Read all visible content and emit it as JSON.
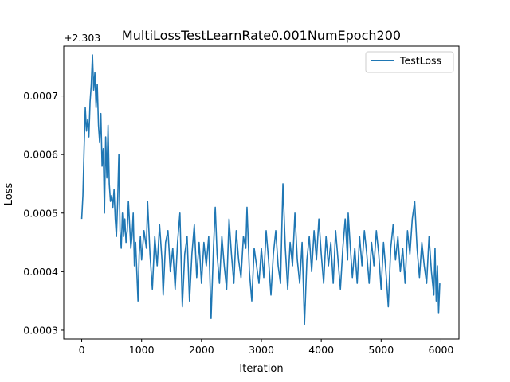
{
  "chart_data": {
    "type": "line",
    "title": "MultiLossTestLearnRate0.001NumEpoch200",
    "xlabel": "Iteration",
    "ylabel": "Loss",
    "y_offset_label": "+2.303",
    "y_offset": 2.303,
    "xlim": [
      -300,
      6300
    ],
    "ylim": [
      0.000285,
      0.000785
    ],
    "xticks": [
      0,
      1000,
      2000,
      3000,
      4000,
      5000,
      6000
    ],
    "xtick_labels": [
      "0",
      "1000",
      "2000",
      "3000",
      "4000",
      "5000",
      "6000"
    ],
    "yticks": [
      0.0003,
      0.0004,
      0.0005,
      0.0006,
      0.0007
    ],
    "ytick_labels": [
      "0.0003",
      "0.0004",
      "0.0005",
      "0.0006",
      "0.0007"
    ],
    "grid": false,
    "legend": {
      "position": "top-right",
      "entries": [
        "TestLoss"
      ]
    },
    "series": [
      {
        "name": "TestLoss",
        "color": "#1f77b4",
        "points": [
          [
            0,
            0.00049
          ],
          [
            20,
            0.00053
          ],
          [
            40,
            0.00061
          ],
          [
            60,
            0.00068
          ],
          [
            80,
            0.00064
          ],
          [
            100,
            0.00066
          ],
          [
            120,
            0.00063
          ],
          [
            140,
            0.00069
          ],
          [
            160,
            0.00072
          ],
          [
            180,
            0.00077
          ],
          [
            200,
            0.00071
          ],
          [
            220,
            0.00074
          ],
          [
            240,
            0.00068
          ],
          [
            260,
            0.00072
          ],
          [
            280,
            0.00065
          ],
          [
            300,
            0.00062
          ],
          [
            320,
            0.00067
          ],
          [
            340,
            0.00058
          ],
          [
            360,
            0.00061
          ],
          [
            380,
            0.0005
          ],
          [
            400,
            0.00063
          ],
          [
            420,
            0.00056
          ],
          [
            440,
            0.00065
          ],
          [
            460,
            0.00055
          ],
          [
            480,
            0.00052
          ],
          [
            500,
            0.00053
          ],
          [
            520,
            0.00051
          ],
          [
            540,
            0.00054
          ],
          [
            560,
            0.00049
          ],
          [
            580,
            0.00046
          ],
          [
            600,
            0.00052
          ],
          [
            620,
            0.0006
          ],
          [
            640,
            0.00047
          ],
          [
            660,
            0.00044
          ],
          [
            680,
            0.0005
          ],
          [
            700,
            0.00046
          ],
          [
            720,
            0.00049
          ],
          [
            740,
            0.00045
          ],
          [
            760,
            0.00047
          ],
          [
            780,
            0.00052
          ],
          [
            800,
            0.00048
          ],
          [
            820,
            0.00044
          ],
          [
            840,
            0.00046
          ],
          [
            860,
            0.0005
          ],
          [
            880,
            0.00041
          ],
          [
            900,
            0.00045
          ],
          [
            920,
            0.0004
          ],
          [
            940,
            0.00035
          ],
          [
            960,
            0.00043
          ],
          [
            980,
            0.00046
          ],
          [
            1000,
            0.00042
          ],
          [
            1040,
            0.00047
          ],
          [
            1080,
            0.00044
          ],
          [
            1100,
            0.00052
          ],
          [
            1140,
            0.00043
          ],
          [
            1180,
            0.00037
          ],
          [
            1220,
            0.00046
          ],
          [
            1260,
            0.00041
          ],
          [
            1300,
            0.00048
          ],
          [
            1340,
            0.00042
          ],
          [
            1360,
            0.00036
          ],
          [
            1400,
            0.00045
          ],
          [
            1440,
            0.00047
          ],
          [
            1480,
            0.0004
          ],
          [
            1520,
            0.00044
          ],
          [
            1560,
            0.00037
          ],
          [
            1600,
            0.00045
          ],
          [
            1640,
            0.0005
          ],
          [
            1680,
            0.00034
          ],
          [
            1720,
            0.00043
          ],
          [
            1760,
            0.00046
          ],
          [
            1800,
            0.00035
          ],
          [
            1840,
            0.00043
          ],
          [
            1880,
            0.00048
          ],
          [
            1920,
            0.00039
          ],
          [
            1960,
            0.00045
          ],
          [
            2000,
            0.00038
          ],
          [
            2040,
            0.00045
          ],
          [
            2080,
            0.00041
          ],
          [
            2120,
            0.00046
          ],
          [
            2160,
            0.00032
          ],
          [
            2200,
            0.00044
          ],
          [
            2230,
            0.00051
          ],
          [
            2260,
            0.00043
          ],
          [
            2300,
            0.00038
          ],
          [
            2340,
            0.00046
          ],
          [
            2380,
            0.00041
          ],
          [
            2420,
            0.00037
          ],
          [
            2460,
            0.00049
          ],
          [
            2500,
            0.00043
          ],
          [
            2540,
            0.00038
          ],
          [
            2580,
            0.00047
          ],
          [
            2620,
            0.00042
          ],
          [
            2660,
            0.00039
          ],
          [
            2700,
            0.00046
          ],
          [
            2740,
            0.00044
          ],
          [
            2760,
            0.00051
          ],
          [
            2800,
            0.0004
          ],
          [
            2840,
            0.00035
          ],
          [
            2880,
            0.00044
          ],
          [
            2920,
            0.00041
          ],
          [
            2960,
            0.00038
          ],
          [
            3000,
            0.00044
          ],
          [
            3040,
            0.00039
          ],
          [
            3080,
            0.00047
          ],
          [
            3120,
            0.00042
          ],
          [
            3160,
            0.00036
          ],
          [
            3200,
            0.00043
          ],
          [
            3240,
            0.00047
          ],
          [
            3280,
            0.00041
          ],
          [
            3320,
            0.00038
          ],
          [
            3360,
            0.00055
          ],
          [
            3400,
            0.00044
          ],
          [
            3440,
            0.00037
          ],
          [
            3480,
            0.00045
          ],
          [
            3520,
            0.00041
          ],
          [
            3560,
            0.0005
          ],
          [
            3600,
            0.00042
          ],
          [
            3640,
            0.00038
          ],
          [
            3680,
            0.00045
          ],
          [
            3720,
            0.00031
          ],
          [
            3760,
            0.00042
          ],
          [
            3800,
            0.00046
          ],
          [
            3840,
            0.0004
          ],
          [
            3880,
            0.00047
          ],
          [
            3920,
            0.00042
          ],
          [
            3960,
            0.00049
          ],
          [
            4000,
            0.00043
          ],
          [
            4040,
            0.00038
          ],
          [
            4080,
            0.00046
          ],
          [
            4120,
            0.00041
          ],
          [
            4160,
            0.00045
          ],
          [
            4200,
            0.00038
          ],
          [
            4240,
            0.00047
          ],
          [
            4280,
            0.00042
          ],
          [
            4320,
            0.00037
          ],
          [
            4360,
            0.00044
          ],
          [
            4400,
            0.00049
          ],
          [
            4440,
            0.00042
          ],
          [
            4450,
            0.0005
          ],
          [
            4480,
            0.00045
          ],
          [
            4520,
            0.00039
          ],
          [
            4560,
            0.00044
          ],
          [
            4600,
            0.00038
          ],
          [
            4640,
            0.00046
          ],
          [
            4680,
            0.00041
          ],
          [
            4720,
            0.00047
          ],
          [
            4760,
            0.00043
          ],
          [
            4800,
            0.00038
          ],
          [
            4840,
            0.00045
          ],
          [
            4880,
            0.00041
          ],
          [
            4920,
            0.00047
          ],
          [
            4960,
            0.00043
          ],
          [
            5000,
            0.00037
          ],
          [
            5040,
            0.00045
          ],
          [
            5080,
            0.0004
          ],
          [
            5120,
            0.00034
          ],
          [
            5160,
            0.00044
          ],
          [
            5200,
            0.00048
          ],
          [
            5240,
            0.00042
          ],
          [
            5280,
            0.00046
          ],
          [
            5320,
            0.0004
          ],
          [
            5360,
            0.00044
          ],
          [
            5400,
            0.00038
          ],
          [
            5440,
            0.00047
          ],
          [
            5480,
            0.00043
          ],
          [
            5520,
            0.00049
          ],
          [
            5560,
            0.00052
          ],
          [
            5600,
            0.00044
          ],
          [
            5640,
            0.00039
          ],
          [
            5680,
            0.00045
          ],
          [
            5720,
            0.00041
          ],
          [
            5760,
            0.00038
          ],
          [
            5800,
            0.00046
          ],
          [
            5840,
            0.0004
          ],
          [
            5880,
            0.00036
          ],
          [
            5900,
            0.00044
          ],
          [
            5920,
            0.00035
          ],
          [
            5940,
            0.00041
          ],
          [
            5960,
            0.00033
          ],
          [
            5980,
            0.00038
          ]
        ]
      }
    ]
  }
}
